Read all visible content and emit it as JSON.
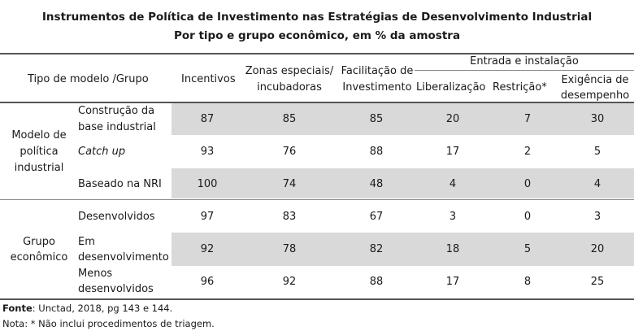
{
  "title": {
    "line1": "Instrumentos de Política de Investimento nas Estratégias de Desenvolvimento Industrial",
    "line2": "Por tipo e grupo econômico, em % da amostra"
  },
  "header": {
    "row_label": "Tipo de modelo /Grupo",
    "incentivos": "Incentivos",
    "zonas_l1": "Zonas especiais/",
    "zonas_l2": "incubadoras",
    "facil_l1": "Facilitação de",
    "facil_l2": "Investimento",
    "group": "Entrada e instalação",
    "liberalizacao": "Liberalização",
    "restricao": "Restrição*",
    "exig_l1": "Exigência de",
    "exig_l2": "desempenho"
  },
  "groups": [
    {
      "l1": "Modelo de",
      "l2": "política",
      "l3": "industrial"
    },
    {
      "l1": "Grupo",
      "l2": "econômico"
    }
  ],
  "rows": [
    {
      "l1": "Construção da",
      "l2": "base industrial",
      "values": [
        "87",
        "85",
        "85",
        "20",
        "7",
        "30"
      ]
    },
    {
      "l1": "Catch up",
      "l2": "",
      "values": [
        "93",
        "76",
        "88",
        "17",
        "2",
        "5"
      ]
    },
    {
      "l1": "Baseado na NRI",
      "l2": "",
      "values": [
        "100",
        "74",
        "48",
        "4",
        "0",
        "4"
      ]
    },
    {
      "l1": "Desenvolvidos",
      "l2": "",
      "values": [
        "97",
        "83",
        "67",
        "3",
        "0",
        "3"
      ]
    },
    {
      "l1": "Em",
      "l2": "desenvolvimento",
      "values": [
        "92",
        "78",
        "82",
        "18",
        "5",
        "20"
      ]
    },
    {
      "l1": "Menos",
      "l2": "desenvolvidos",
      "values": [
        "96",
        "92",
        "88",
        "17",
        "8",
        "25"
      ]
    }
  ],
  "footer": {
    "source_label": "Fonte",
    "source_text": ": Unctad, 2018, pg 143 e 144.",
    "note": "Nota: * Não inclui procedimentos de triagem."
  }
}
